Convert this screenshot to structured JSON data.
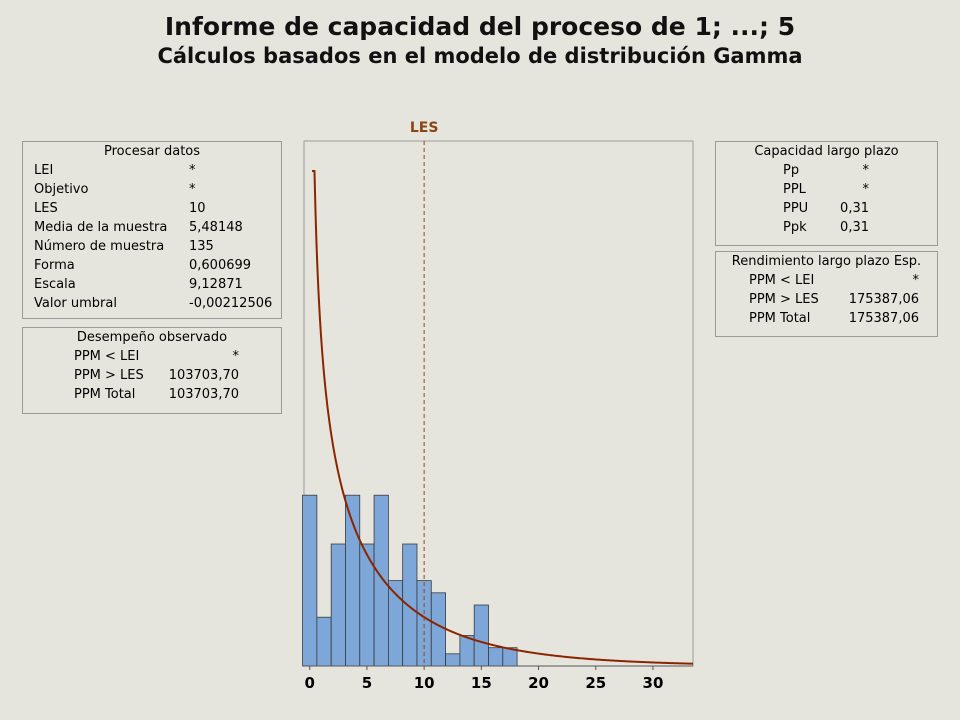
{
  "header": {
    "title": "Informe de capacidad del proceso de 1; ...; 5",
    "subtitle": "Cálculos basados en el modelo de distribución Gamma"
  },
  "process_data": {
    "title": "Procesar datos",
    "rows": [
      {
        "label": "LEI",
        "value": "*"
      },
      {
        "label": "Objetivo",
        "value": "*"
      },
      {
        "label": "LES",
        "value": "10"
      },
      {
        "label": "Media de la muestra",
        "value": "5,48148"
      },
      {
        "label": "Número de muestra",
        "value": "135"
      },
      {
        "label": "Forma",
        "value": "0,600699"
      },
      {
        "label": "Escala",
        "value": "9,12871"
      },
      {
        "label": "Valor umbral",
        "value": "-0,00212506"
      }
    ]
  },
  "observed": {
    "title": "Desempeño observado",
    "rows": [
      {
        "label": "PPM < LEI",
        "value": "*"
      },
      {
        "label": "PPM > LES",
        "value": "103703,70"
      },
      {
        "label": "PPM Total",
        "value": "103703,70"
      }
    ]
  },
  "long_term_capability": {
    "title": "Capacidad largo plazo",
    "rows": [
      {
        "label": "Pp",
        "value": "*"
      },
      {
        "label": "PPL",
        "value": "*"
      },
      {
        "label": "PPU",
        "value": "0,31"
      },
      {
        "label": "Ppk",
        "value": "0,31"
      }
    ]
  },
  "expected_yield": {
    "title": "Rendimiento largo plazo Esp.",
    "rows": [
      {
        "label": "PPM < LEI",
        "value": "*"
      },
      {
        "label": "PPM > LES",
        "value": "175387,06"
      },
      {
        "label": "PPM Total",
        "value": "175387,06"
      }
    ]
  },
  "colors": {
    "bar_fill": "#7da7d9",
    "bar_stroke": "#3a3a3a",
    "curve": "#8b2500",
    "les_line": "#a0421a",
    "les_label": "#8b4513",
    "plot_bg": "#e6e5dd"
  },
  "chart_data": {
    "type": "bar",
    "title": "",
    "xlabel": "",
    "ylabel": "",
    "xlim": [
      -0.5,
      33.5
    ],
    "x_ticks": [
      0,
      5,
      10,
      15,
      20,
      25,
      30
    ],
    "bin_width": 1.25,
    "bins": [
      {
        "x_start": -0.625,
        "count": 14
      },
      {
        "x_start": 0.625,
        "count": 4
      },
      {
        "x_start": 1.875,
        "count": 10
      },
      {
        "x_start": 3.125,
        "count": 14
      },
      {
        "x_start": 4.375,
        "count": 10
      },
      {
        "x_start": 5.625,
        "count": 14
      },
      {
        "x_start": 6.875,
        "count": 7
      },
      {
        "x_start": 8.125,
        "count": 10
      },
      {
        "x_start": 9.375,
        "count": 7
      },
      {
        "x_start": 10.625,
        "count": 6
      },
      {
        "x_start": 11.875,
        "count": 1
      },
      {
        "x_start": 13.125,
        "count": 2.5
      },
      {
        "x_start": 14.375,
        "count": 5
      },
      {
        "x_start": 15.625,
        "count": 1.5
      },
      {
        "x_start": 16.875,
        "count": 1.5
      }
    ],
    "distribution": {
      "name": "Gamma",
      "shape": 0.600699,
      "scale": 9.12871,
      "threshold": -0.00212506
    },
    "spec_lines": [
      {
        "name": "LES",
        "value": 10
      }
    ]
  }
}
